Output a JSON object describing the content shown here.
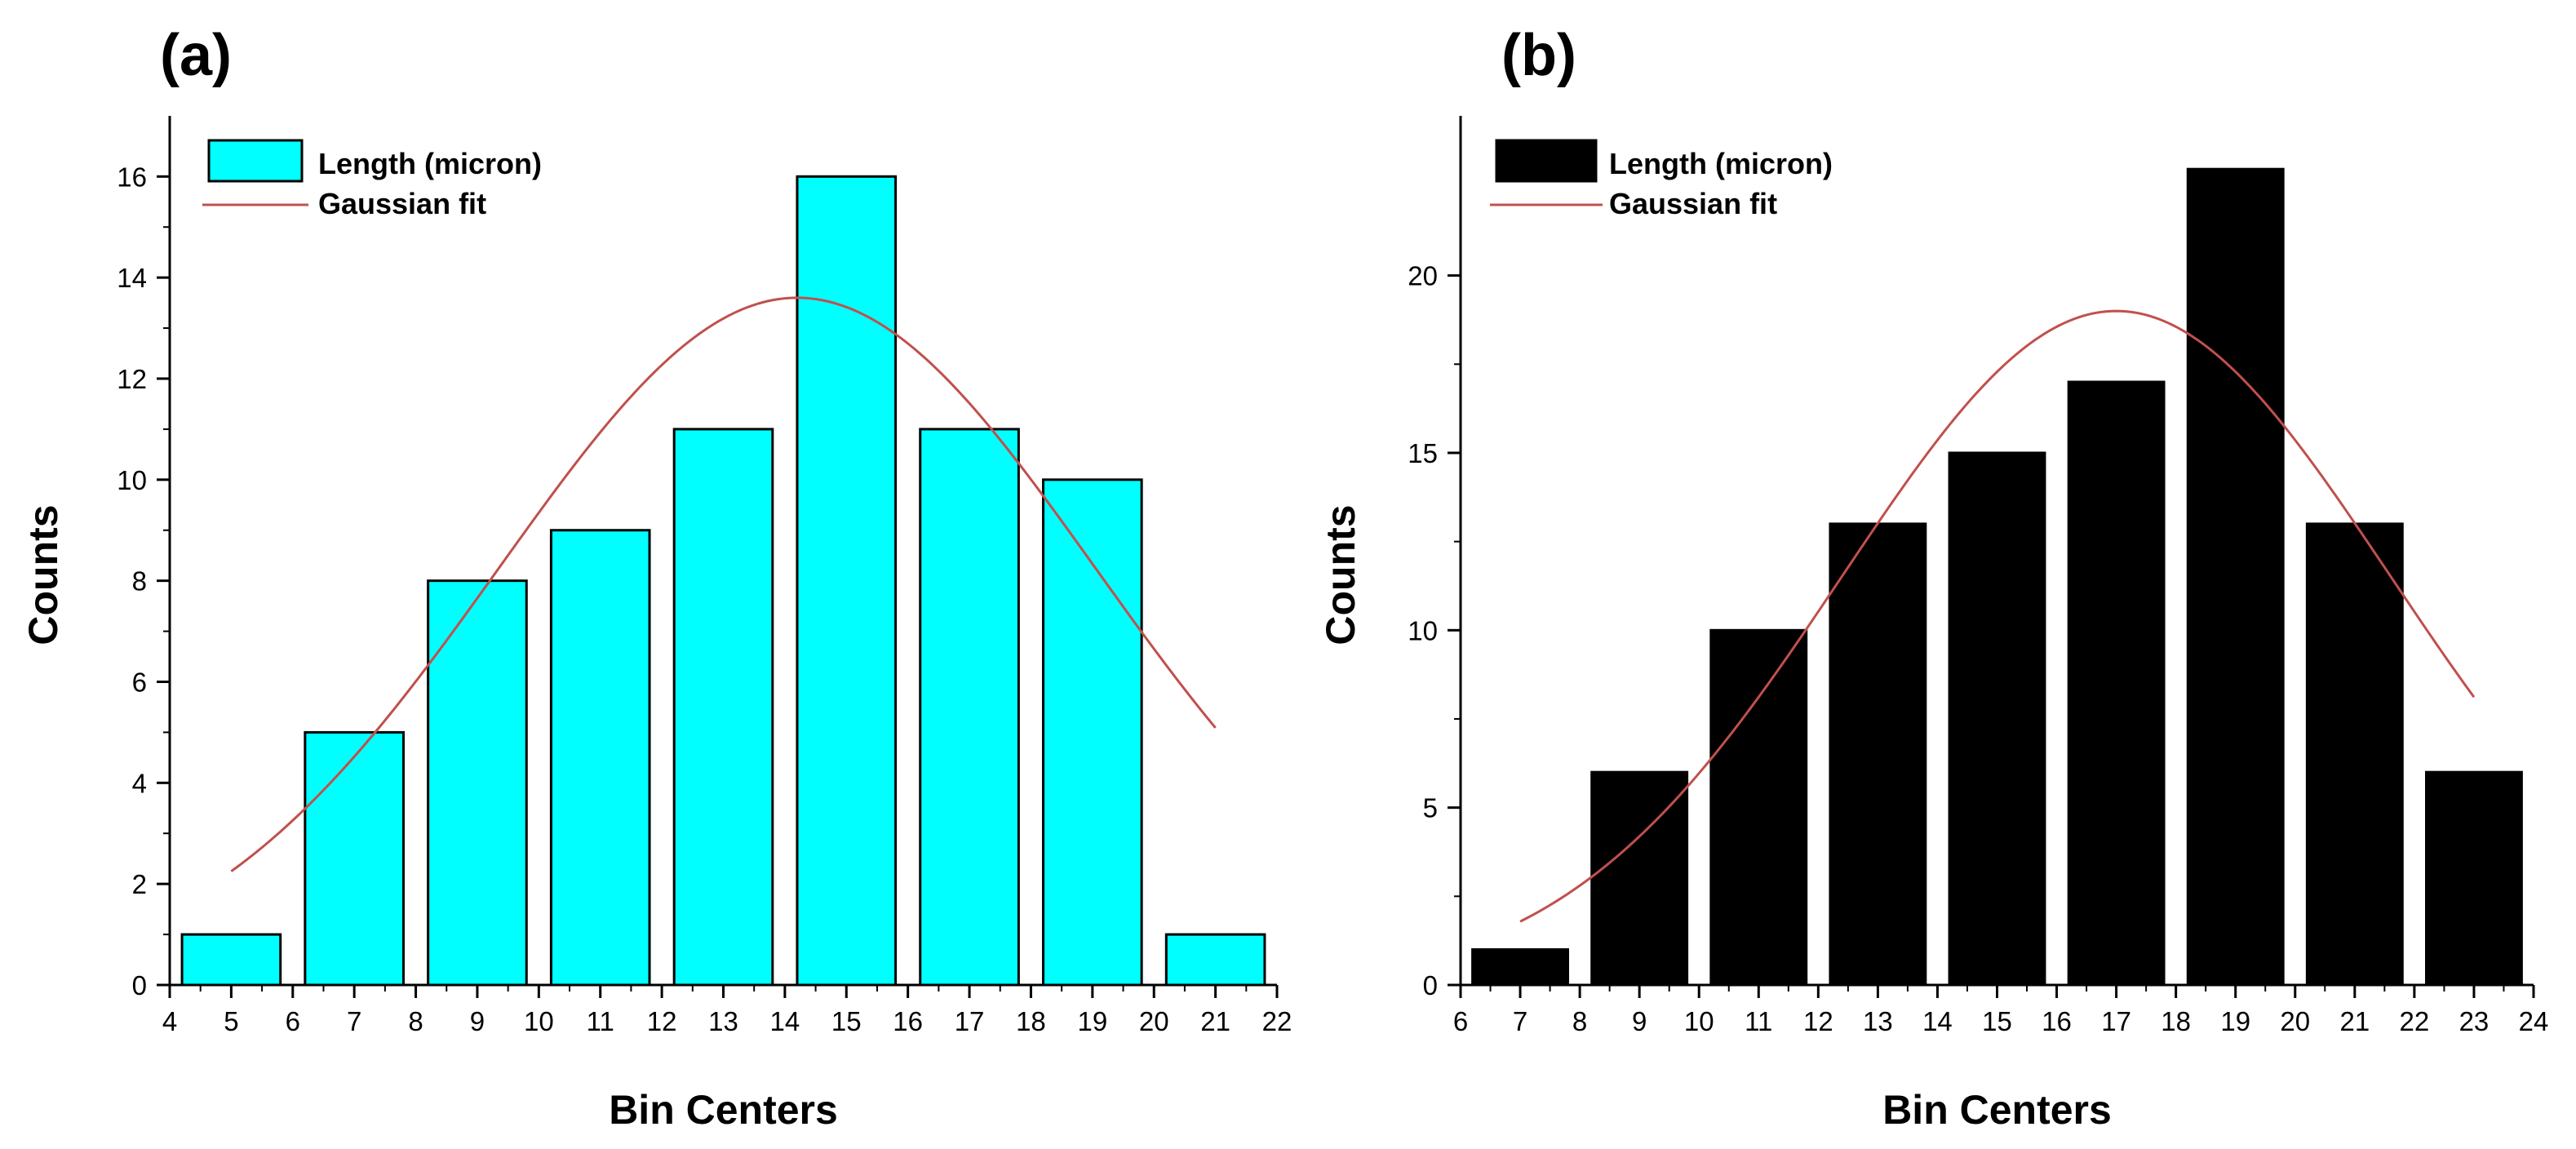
{
  "chart_data": [
    {
      "type": "bar",
      "panel_label": "(a)",
      "xlabel": "Bin Centers",
      "ylabel": "Counts",
      "bar_color": "#00FFFF",
      "fit_color": "#C0504D",
      "categories": [
        5,
        7,
        9,
        11,
        13,
        15,
        17,
        19,
        21
      ],
      "values": [
        1,
        5,
        8,
        9,
        11,
        16,
        11,
        10,
        1
      ],
      "bar_width": 1.6,
      "xlim": [
        4,
        22
      ],
      "ylim": [
        0,
        17.2
      ],
      "xticks": [
        4,
        5,
        6,
        7,
        8,
        9,
        10,
        11,
        12,
        13,
        14,
        15,
        16,
        17,
        18,
        19,
        20,
        21,
        22
      ],
      "yticks": [
        0,
        2,
        4,
        6,
        8,
        10,
        12,
        14,
        16
      ],
      "legend": [
        {
          "label": "Length (micron)",
          "kind": "box"
        },
        {
          "label": "Gaussian fit",
          "kind": "line"
        }
      ],
      "gaussian_fit": {
        "amplitude": 13.6,
        "center": 14.2,
        "sigma": 4.85,
        "x_range": [
          5,
          21
        ]
      }
    },
    {
      "type": "bar",
      "panel_label": "(b)",
      "xlabel": "Bin Centers",
      "ylabel": "Counts",
      "bar_color": "#000000",
      "fit_color": "#C0504D",
      "categories": [
        7,
        9,
        11,
        13,
        15,
        17,
        19,
        21,
        23
      ],
      "values": [
        1,
        6,
        10,
        13,
        15,
        17,
        23,
        13,
        6
      ],
      "bar_width": 1.6,
      "xlim": [
        6,
        24
      ],
      "ylim": [
        0,
        24.5
      ],
      "xticks": [
        6,
        7,
        8,
        9,
        10,
        11,
        12,
        13,
        14,
        15,
        16,
        17,
        18,
        19,
        20,
        21,
        22,
        23,
        24
      ],
      "yticks": [
        0,
        5,
        10,
        15,
        20
      ],
      "legend": [
        {
          "label": "Length (micron)",
          "kind": "box"
        },
        {
          "label": "Gaussian fit",
          "kind": "line"
        }
      ],
      "gaussian_fit": {
        "amplitude": 19.0,
        "center": 17.0,
        "sigma": 4.6,
        "x_range": [
          7,
          23
        ]
      }
    }
  ]
}
